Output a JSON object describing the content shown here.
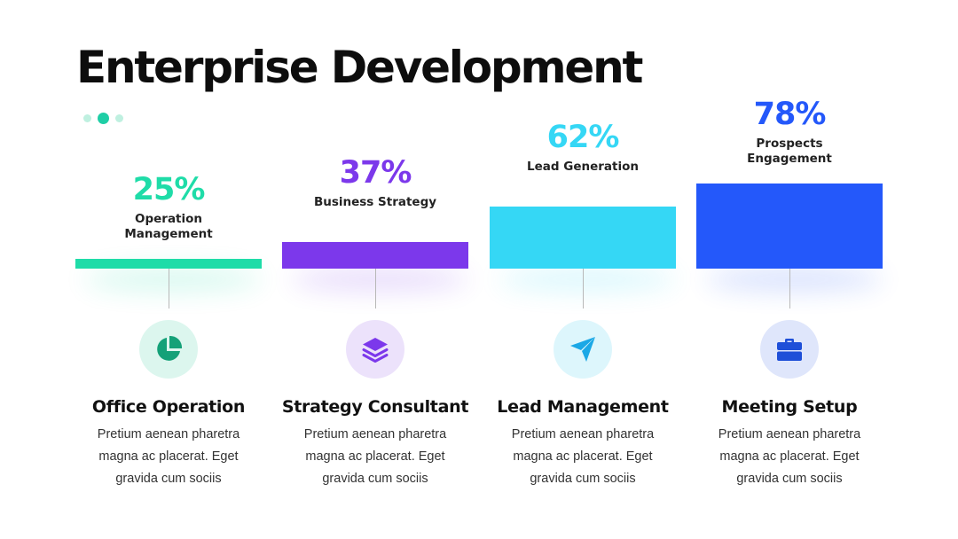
{
  "title": "Enterprise Development",
  "chart_data": {
    "type": "bar",
    "categories": [
      "Operation Management",
      "Business Strategy",
      "Lead Generation",
      "Prospects Engagement"
    ],
    "values": [
      25,
      37,
      62,
      78
    ],
    "value_labels": [
      "25%",
      "37%",
      "62%",
      "78%"
    ],
    "unit": "%",
    "colors": [
      "#1fdca8",
      "#7c38eb",
      "#35d7f5",
      "#2458fa"
    ],
    "grid": false,
    "legend": "none"
  },
  "items": [
    {
      "title": "Office Operation",
      "icon": "pie-chart-icon",
      "color": "#1fdca8",
      "icon_color": "#14a178",
      "icon_bg": "#dcf6ee",
      "desc_lines": [
        "Pretium aenean pharetra",
        "magna ac placerat. Eget",
        "gravida cum sociis"
      ]
    },
    {
      "title": "Strategy Consultant",
      "icon": "layers-icon",
      "color": "#7c38eb",
      "icon_color": "#7c38eb",
      "icon_bg": "#ece2fb",
      "desc_lines": [
        "Pretium aenean pharetra",
        "magna ac placerat. Eget",
        "gravida cum sociis"
      ]
    },
    {
      "title": "Lead Management",
      "icon": "paper-plane-icon",
      "color": "#35d7f5",
      "icon_color": "#1ba8e6",
      "icon_bg": "#ddf6fc",
      "desc_lines": [
        "Pretium aenean pharetra",
        "magna ac placerat. Eget",
        "gravida cum sociis"
      ]
    },
    {
      "title": "Meeting Setup",
      "icon": "briefcase-icon",
      "color": "#2458fa",
      "icon_color": "#1e4fd8",
      "icon_bg": "#dfe6fb",
      "desc_lines": [
        "Pretium aenean pharetra",
        "magna ac placerat. Eget",
        "gravida cum sociis"
      ]
    }
  ]
}
